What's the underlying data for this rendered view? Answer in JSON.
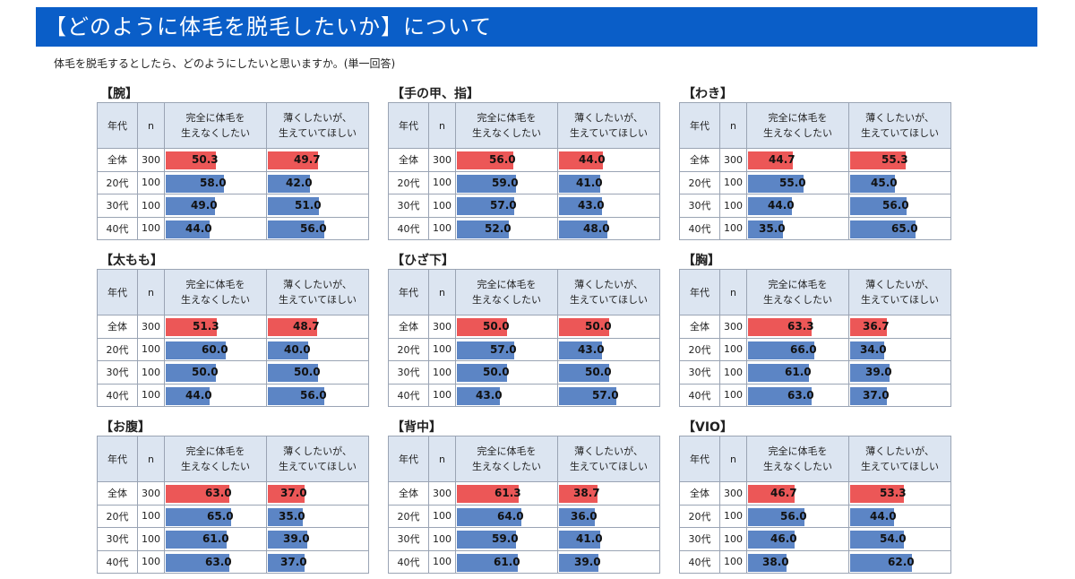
{
  "title": "【どのように体毛を脱毛したいか】について",
  "subtitle": "体毛を脱毛するとしたら、どのようにしたいと思いますか。(単一回答)",
  "headers": {
    "age": "年代",
    "n": "n",
    "col1": "完全に体毛を生えなくしたい",
    "col1_line1": "完全に体毛を",
    "col1_line2": "生えなくしたい",
    "col2": "薄くしたいが、生えていてほしい",
    "col2_line1": "薄くしたいが、",
    "col2_line2": "生えていてほしい"
  },
  "colors": {
    "total": "#ec5757",
    "age": "#5c85c5",
    "banner": "#0a5ec8",
    "header_bg": "#dce5f1"
  },
  "chart_data": [
    {
      "type": "table",
      "title": "【腕】",
      "rows": [
        {
          "age": "全体",
          "n": "300",
          "v1": "50.3",
          "v2": "49.7"
        },
        {
          "age": "20代",
          "n": "100",
          "v1": "58.0",
          "v2": "42.0"
        },
        {
          "age": "30代",
          "n": "100",
          "v1": "49.0",
          "v2": "51.0"
        },
        {
          "age": "40代",
          "n": "100",
          "v1": "44.0",
          "v2": "56.0"
        }
      ]
    },
    {
      "type": "table",
      "title": "【手の甲、指】",
      "rows": [
        {
          "age": "全体",
          "n": "300",
          "v1": "56.0",
          "v2": "44.0"
        },
        {
          "age": "20代",
          "n": "100",
          "v1": "59.0",
          "v2": "41.0"
        },
        {
          "age": "30代",
          "n": "100",
          "v1": "57.0",
          "v2": "43.0"
        },
        {
          "age": "40代",
          "n": "100",
          "v1": "52.0",
          "v2": "48.0"
        }
      ]
    },
    {
      "type": "table",
      "title": "【わき】",
      "rows": [
        {
          "age": "全体",
          "n": "300",
          "v1": "44.7",
          "v2": "55.3"
        },
        {
          "age": "20代",
          "n": "100",
          "v1": "55.0",
          "v2": "45.0"
        },
        {
          "age": "30代",
          "n": "100",
          "v1": "44.0",
          "v2": "56.0"
        },
        {
          "age": "40代",
          "n": "100",
          "v1": "35.0",
          "v2": "65.0"
        }
      ]
    },
    {
      "type": "table",
      "title": "【太もも】",
      "rows": [
        {
          "age": "全体",
          "n": "300",
          "v1": "51.3",
          "v2": "48.7"
        },
        {
          "age": "20代",
          "n": "100",
          "v1": "60.0",
          "v2": "40.0"
        },
        {
          "age": "30代",
          "n": "100",
          "v1": "50.0",
          "v2": "50.0"
        },
        {
          "age": "40代",
          "n": "100",
          "v1": "44.0",
          "v2": "56.0"
        }
      ]
    },
    {
      "type": "table",
      "title": "【ひざ下】",
      "rows": [
        {
          "age": "全体",
          "n": "300",
          "v1": "50.0",
          "v2": "50.0"
        },
        {
          "age": "20代",
          "n": "100",
          "v1": "57.0",
          "v2": "43.0"
        },
        {
          "age": "30代",
          "n": "100",
          "v1": "50.0",
          "v2": "50.0"
        },
        {
          "age": "40代",
          "n": "100",
          "v1": "43.0",
          "v2": "57.0"
        }
      ]
    },
    {
      "type": "table",
      "title": "【胸】",
      "rows": [
        {
          "age": "全体",
          "n": "300",
          "v1": "63.3",
          "v2": "36.7"
        },
        {
          "age": "20代",
          "n": "100",
          "v1": "66.0",
          "v2": "34.0"
        },
        {
          "age": "30代",
          "n": "100",
          "v1": "61.0",
          "v2": "39.0"
        },
        {
          "age": "40代",
          "n": "100",
          "v1": "63.0",
          "v2": "37.0"
        }
      ]
    },
    {
      "type": "table",
      "title": "【お腹】",
      "rows": [
        {
          "age": "全体",
          "n": "300",
          "v1": "63.0",
          "v2": "37.0"
        },
        {
          "age": "20代",
          "n": "100",
          "v1": "65.0",
          "v2": "35.0"
        },
        {
          "age": "30代",
          "n": "100",
          "v1": "61.0",
          "v2": "39.0"
        },
        {
          "age": "40代",
          "n": "100",
          "v1": "63.0",
          "v2": "37.0"
        }
      ]
    },
    {
      "type": "table",
      "title": "【背中】",
      "rows": [
        {
          "age": "全体",
          "n": "300",
          "v1": "61.3",
          "v2": "38.7"
        },
        {
          "age": "20代",
          "n": "100",
          "v1": "64.0",
          "v2": "36.0"
        },
        {
          "age": "30代",
          "n": "100",
          "v1": "59.0",
          "v2": "41.0"
        },
        {
          "age": "40代",
          "n": "100",
          "v1": "61.0",
          "v2": "39.0"
        }
      ]
    },
    {
      "type": "table",
      "title": "【VIO】",
      "rows": [
        {
          "age": "全体",
          "n": "300",
          "v1": "46.7",
          "v2": "53.3"
        },
        {
          "age": "20代",
          "n": "100",
          "v1": "56.0",
          "v2": "44.0"
        },
        {
          "age": "30代",
          "n": "100",
          "v1": "46.0",
          "v2": "54.0"
        },
        {
          "age": "40代",
          "n": "100",
          "v1": "38.0",
          "v2": "62.0"
        }
      ]
    }
  ]
}
